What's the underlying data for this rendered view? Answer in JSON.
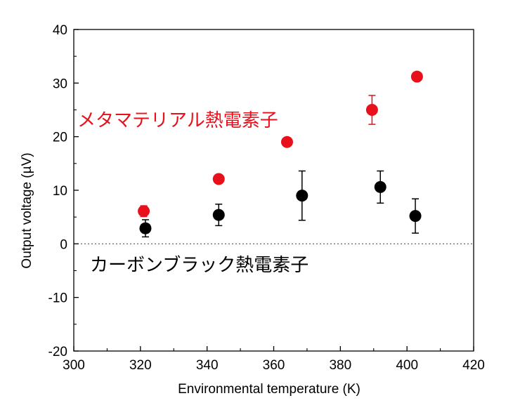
{
  "chart_data": {
    "type": "scatter",
    "xlabel": "Environmental temperature (K)",
    "ylabel": "Output voltage (µV)",
    "xlim": [
      300,
      420
    ],
    "ylim": [
      -20,
      40
    ],
    "xticks": [
      300,
      320,
      340,
      360,
      380,
      400,
      420
    ],
    "yticks": [
      -20,
      -10,
      0,
      10,
      20,
      30,
      40
    ],
    "zero_line": 0,
    "grid": false,
    "series": [
      {
        "name": "メタマテリアル熱電素子",
        "color": "#e8101a",
        "points": [
          {
            "x": 321,
            "y": 6.1,
            "err": 1.0
          },
          {
            "x": 343.5,
            "y": 12.1,
            "err": 0
          },
          {
            "x": 364,
            "y": 19.0,
            "err": 0
          },
          {
            "x": 389.5,
            "y": 25.0,
            "err": 2.7
          },
          {
            "x": 403,
            "y": 31.2,
            "err": 0
          }
        ]
      },
      {
        "name": "カーボンブラック熱電素子",
        "color": "#000000",
        "points": [
          {
            "x": 321.5,
            "y": 2.9,
            "err": 1.6
          },
          {
            "x": 343.5,
            "y": 5.4,
            "err": 2.0
          },
          {
            "x": 368.5,
            "y": 9.0,
            "err": 4.6
          },
          {
            "x": 392,
            "y": 10.6,
            "err": 3.0
          },
          {
            "x": 402.5,
            "y": 5.2,
            "err": 3.2
          }
        ]
      }
    ]
  }
}
